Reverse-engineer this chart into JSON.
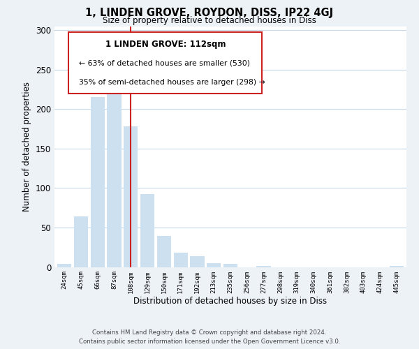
{
  "title": "1, LINDEN GROVE, ROYDON, DISS, IP22 4GJ",
  "subtitle": "Size of property relative to detached houses in Diss",
  "xlabel": "Distribution of detached houses by size in Diss",
  "ylabel": "Number of detached properties",
  "categories": [
    "24sqm",
    "45sqm",
    "66sqm",
    "87sqm",
    "108sqm",
    "129sqm",
    "150sqm",
    "171sqm",
    "192sqm",
    "213sqm",
    "235sqm",
    "256sqm",
    "277sqm",
    "298sqm",
    "319sqm",
    "340sqm",
    "361sqm",
    "382sqm",
    "403sqm",
    "424sqm",
    "445sqm"
  ],
  "values": [
    4,
    64,
    215,
    221,
    178,
    92,
    39,
    18,
    14,
    5,
    4,
    0,
    1,
    0,
    0,
    0,
    0,
    0,
    0,
    0,
    1
  ],
  "bar_color": "#cce0f0",
  "highlight_color": "#cc2222",
  "highlight_index": 4,
  "property_label": "1 LINDEN GROVE: 112sqm",
  "smaller_pct": 63,
  "smaller_count": 530,
  "larger_pct": 35,
  "larger_count": 298,
  "ylim": [
    0,
    305
  ],
  "yticks": [
    0,
    50,
    100,
    150,
    200,
    250,
    300
  ],
  "footer_line1": "Contains HM Land Registry data © Crown copyright and database right 2024.",
  "footer_line2": "Contains public sector information licensed under the Open Government Licence v3.0.",
  "background_color": "#edf2f7",
  "plot_bg_color": "#ffffff",
  "grid_color": "#c8d8e8",
  "annotation_box_color": "#ffffff",
  "annotation_border_color": "#cc2222"
}
